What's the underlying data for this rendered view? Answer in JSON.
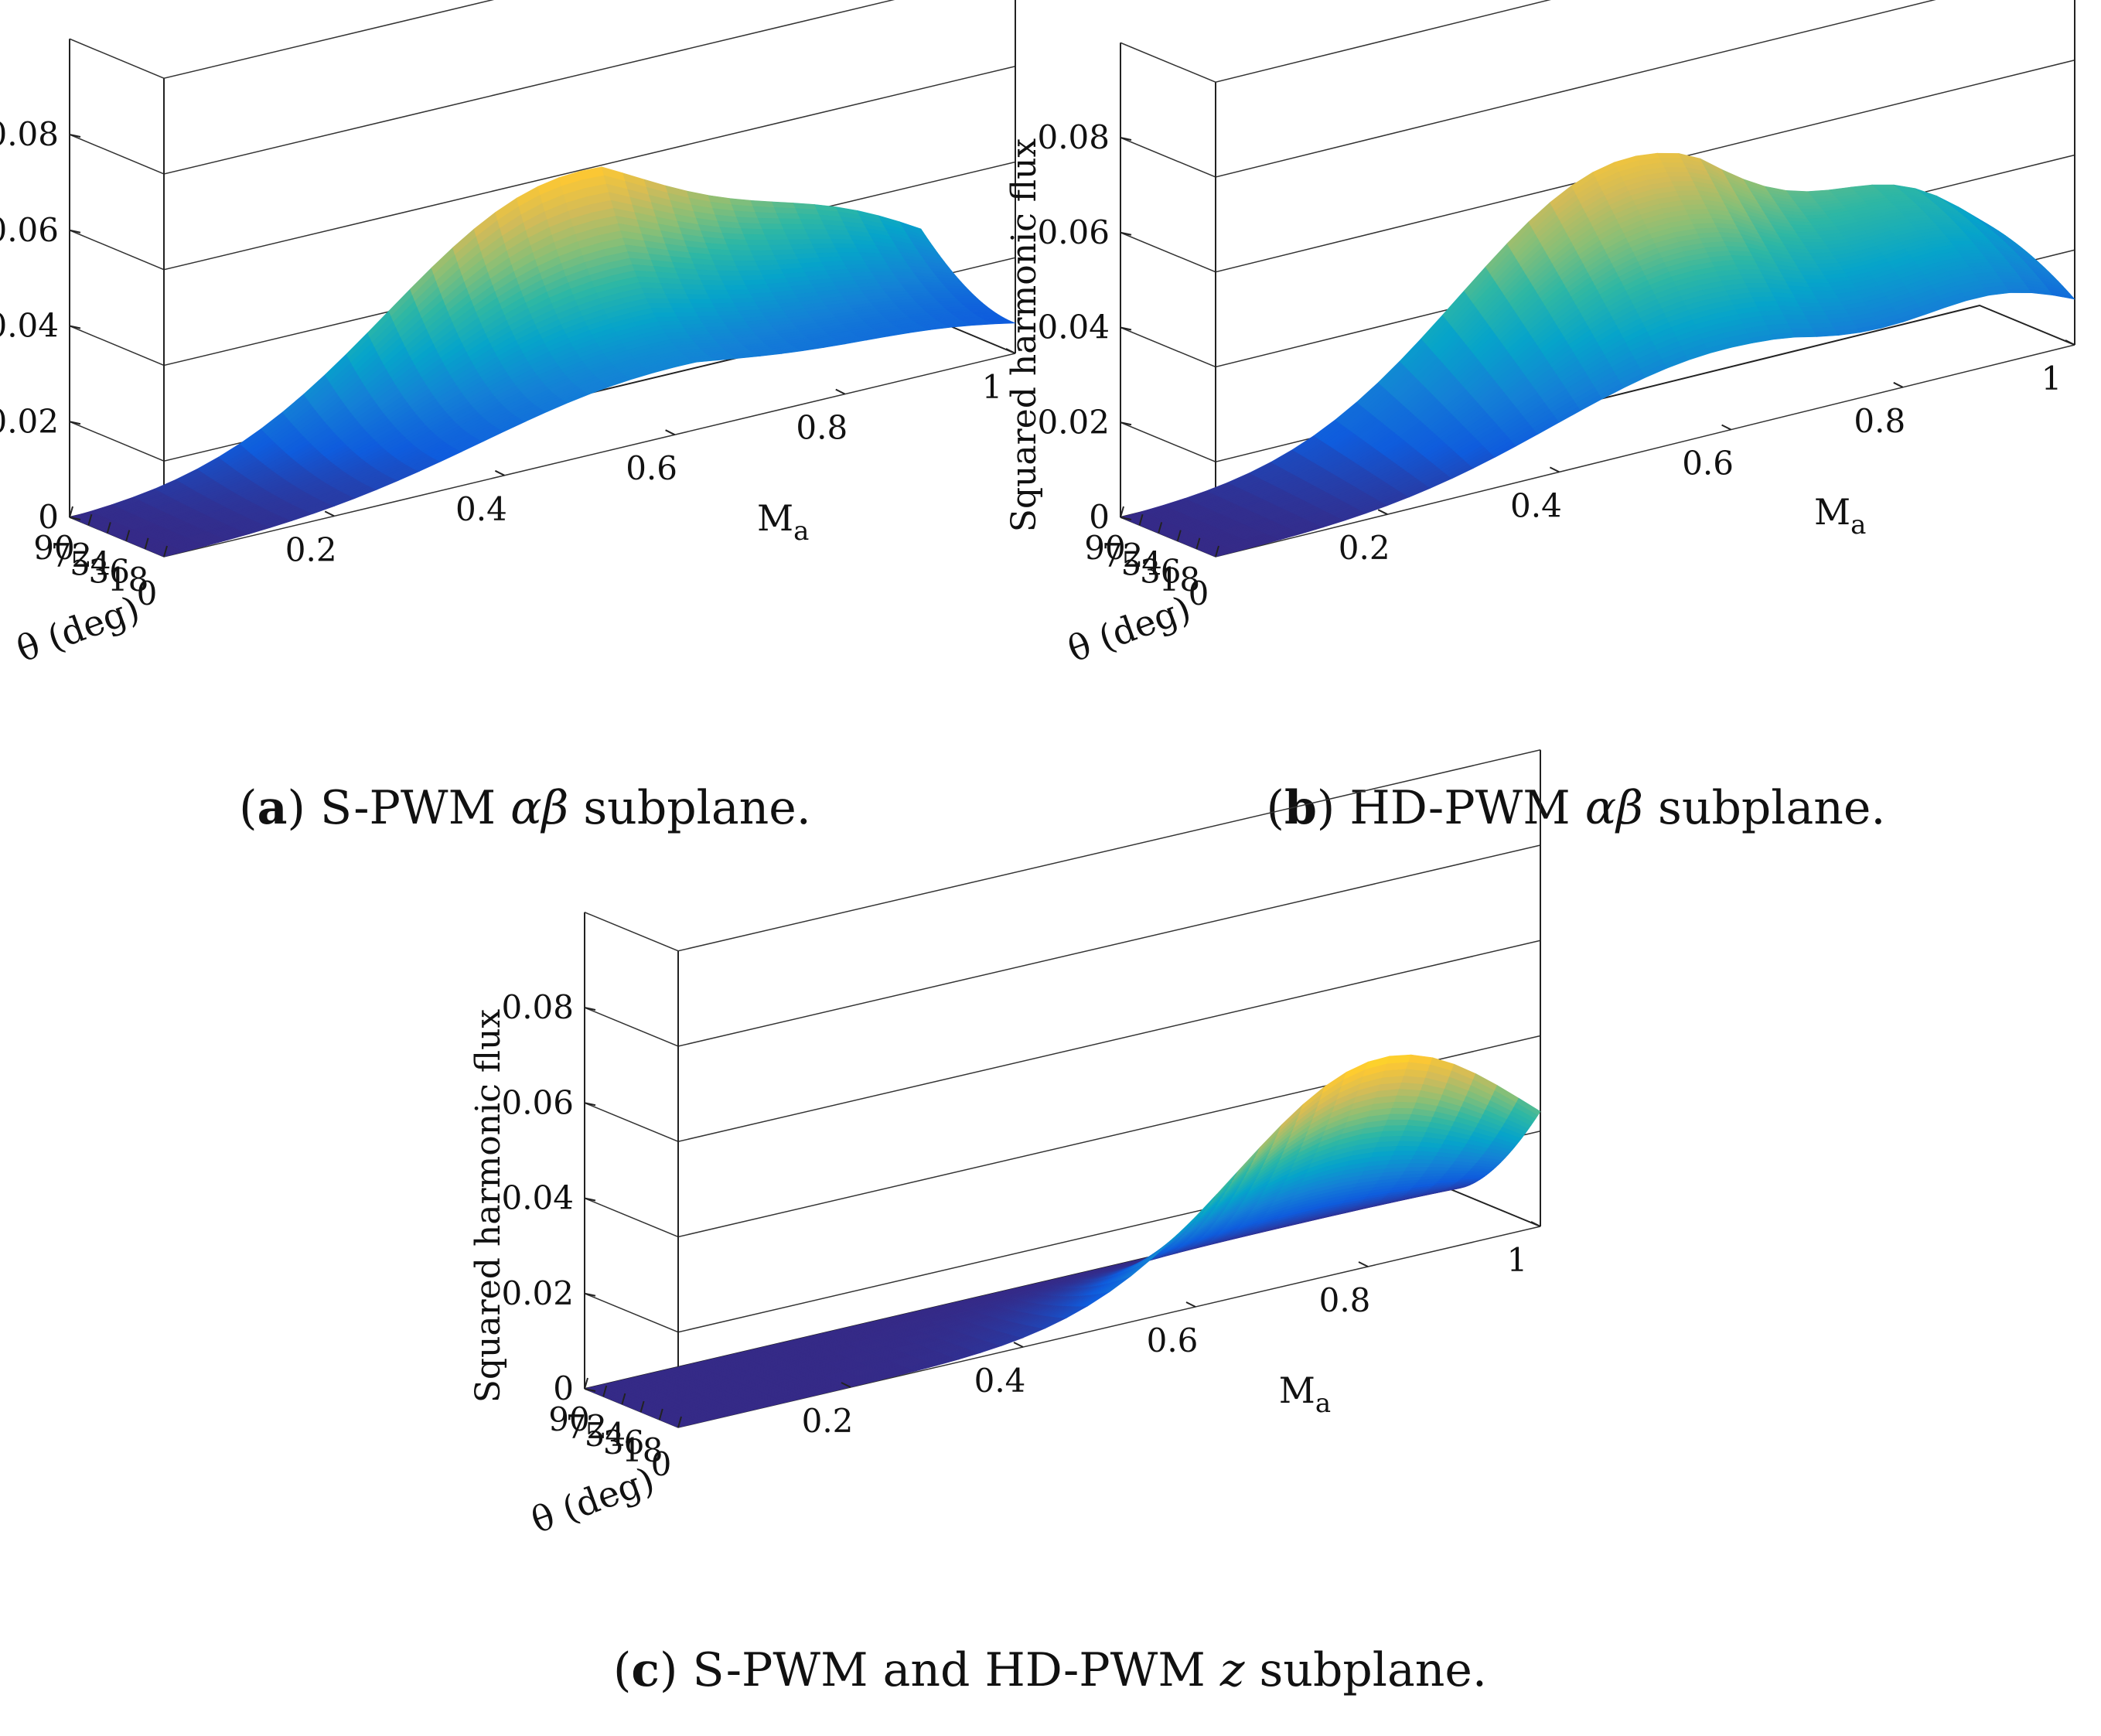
{
  "chart_data": [
    {
      "type": "surface",
      "panel": "a",
      "caption": {
        "label": "a",
        "name": "S-PWM",
        "greek": "αβ",
        "suffix": "subplane."
      },
      "zlabel": "Squared harmonic flux",
      "xlabel": "θ (deg)",
      "ylabel_main": "M",
      "ylabel_sub": "a",
      "zlim": [
        0,
        0.08
      ],
      "zticks": [
        "0",
        "0.02",
        "0.04",
        "0.06",
        "0.08"
      ],
      "xlim": [
        0,
        90
      ],
      "xticks": [
        "0",
        "18",
        "36",
        "54",
        "72",
        "90"
      ],
      "ylim": [
        0,
        1
      ],
      "yticks": [
        "0.2",
        "0.4",
        "0.6",
        "0.8",
        "1"
      ],
      "grid_theta_deg": [
        0,
        9,
        18,
        27,
        36,
        45,
        54,
        63,
        72,
        81,
        90
      ],
      "grid_Ma": [
        0,
        0.1,
        0.2,
        0.3,
        0.4,
        0.5,
        0.6,
        0.7,
        0.8,
        0.9,
        1.0
      ],
      "z_peak": 0.053,
      "colormap": [
        "#352a87",
        "#0f5cdd",
        "#1481d6",
        "#06a4ca",
        "#2eb7a4",
        "#87bf77",
        "#d1bb59",
        "#fec832",
        "#f9fb0e"
      ]
    },
    {
      "type": "surface",
      "panel": "b",
      "caption": {
        "label": "b",
        "name": "HD-PWM",
        "greek": "αβ",
        "suffix": "subplane."
      },
      "zlabel": "Squared harmonic flux",
      "xlabel": "θ (deg)",
      "ylabel_main": "M",
      "ylabel_sub": "a",
      "zlim": [
        0,
        0.08
      ],
      "zticks": [
        "0",
        "0.02",
        "0.04",
        "0.06",
        "0.08"
      ],
      "xlim": [
        0,
        90
      ],
      "xticks": [
        "0",
        "18",
        "36",
        "54",
        "72",
        "90"
      ],
      "ylim": [
        0,
        1
      ],
      "yticks": [
        "0.2",
        "0.4",
        "0.6",
        "0.8",
        "1"
      ],
      "grid_theta_deg": [
        0,
        9,
        18,
        27,
        36,
        45,
        54,
        63,
        72,
        81,
        90
      ],
      "grid_Ma": [
        0,
        0.1,
        0.2,
        0.3,
        0.4,
        0.5,
        0.6,
        0.7,
        0.8,
        0.9,
        1.0
      ],
      "z_peak": 0.059,
      "colormap": [
        "#352a87",
        "#0f5cdd",
        "#1481d6",
        "#06a4ca",
        "#2eb7a4",
        "#87bf77",
        "#d1bb59",
        "#fec832",
        "#f9fb0e"
      ]
    },
    {
      "type": "surface",
      "panel": "c",
      "caption": {
        "label": "c",
        "name": "S-PWM and HD-PWM",
        "greek": "z",
        "suffix": "subplane."
      },
      "zlabel": "Squared harmonic flux",
      "xlabel": "θ (deg)",
      "ylabel_main": "M",
      "ylabel_sub": "a",
      "zlim": [
        0,
        0.08
      ],
      "zticks": [
        "0",
        "0.02",
        "0.04",
        "0.06",
        "0.08"
      ],
      "xlim": [
        0,
        90
      ],
      "xticks": [
        "0",
        "18",
        "36",
        "54",
        "72",
        "90"
      ],
      "ylim": [
        0,
        1
      ],
      "yticks": [
        "0.2",
        "0.4",
        "0.6",
        "0.8",
        "1"
      ],
      "grid_theta_deg": [
        0,
        9,
        18,
        27,
        36,
        45,
        54,
        63,
        72,
        81,
        90
      ],
      "grid_Ma": [
        0,
        0.1,
        0.2,
        0.3,
        0.4,
        0.5,
        0.6,
        0.7,
        0.8,
        0.9,
        1.0
      ],
      "z_peak": 0.047,
      "colormap": [
        "#352a87",
        "#0f5cdd",
        "#1481d6",
        "#06a4ca",
        "#2eb7a4",
        "#87bf77",
        "#d1bb59",
        "#fec832",
        "#f9fb0e"
      ]
    }
  ]
}
